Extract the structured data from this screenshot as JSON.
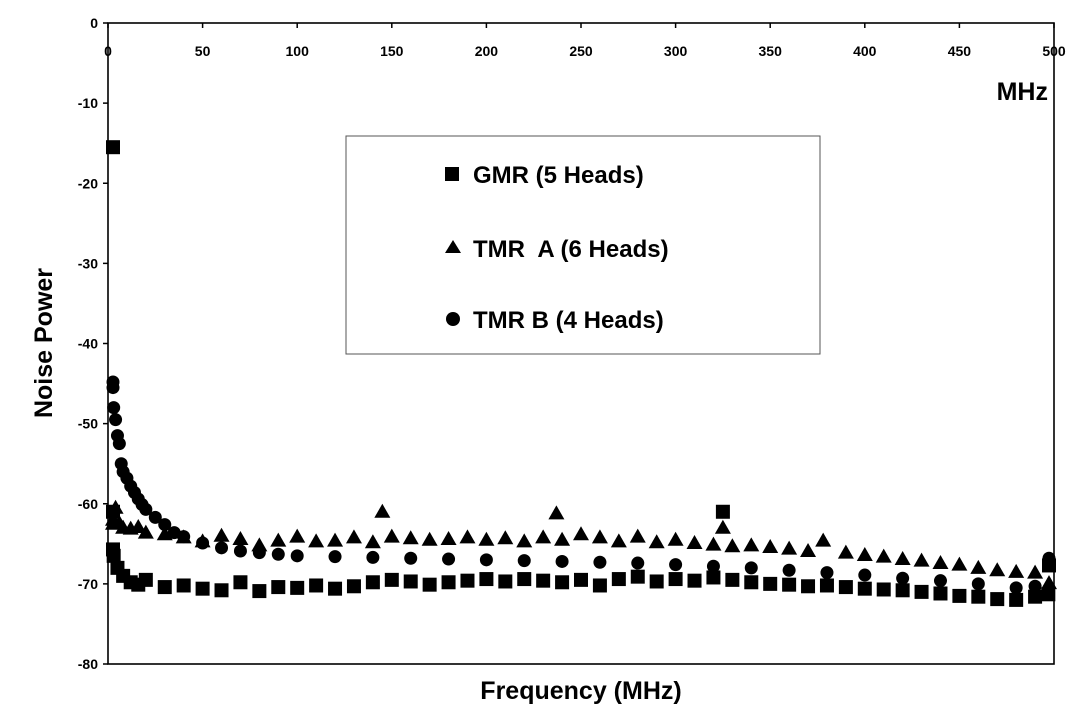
{
  "chart_data": {
    "type": "scatter",
    "title": "",
    "xlabel": "Frequency (MHz)",
    "ylabel": "Noise Power",
    "x_unit_label": "MHz",
    "xlim": [
      0,
      500
    ],
    "ylim": [
      -80,
      0
    ],
    "x_ticks": [
      0,
      50,
      100,
      150,
      200,
      250,
      300,
      350,
      400,
      450,
      500
    ],
    "y_ticks": [
      0,
      -10,
      -20,
      -30,
      -40,
      -50,
      -60,
      -70,
      -80
    ],
    "x_axis_position": "top",
    "grid": false,
    "legend_position": "center-top",
    "series": [
      {
        "name": "GMR (5 Heads)",
        "marker": "square",
        "color": "#000000",
        "x": [
          0,
          1,
          2,
          3,
          5,
          8,
          12,
          16,
          20,
          30,
          40,
          50,
          60,
          70,
          80,
          90,
          100,
          110,
          120,
          130,
          140,
          150,
          160,
          170,
          180,
          190,
          200,
          210,
          220,
          230,
          240,
          250,
          260,
          270,
          280,
          290,
          300,
          310,
          320,
          325,
          330,
          340,
          350,
          360,
          370,
          380,
          390,
          400,
          410,
          420,
          430,
          440,
          450,
          460,
          470,
          480,
          490,
          497,
          500
        ],
        "y": [
          -15.5,
          -61,
          -65.7,
          -66.5,
          -68,
          -69,
          -69.8,
          -70.1,
          -69.5,
          -70.4,
          -70.2,
          -70.6,
          -70.8,
          -69.8,
          -70.9,
          -70.4,
          -70.5,
          -70.2,
          -70.6,
          -70.3,
          -69.8,
          -69.5,
          -69.7,
          -70.1,
          -69.8,
          -69.6,
          -69.4,
          -69.7,
          -69.4,
          -69.6,
          -69.8,
          -69.5,
          -70.2,
          -69.4,
          -69.1,
          -69.7,
          -69.4,
          -69.6,
          -69.2,
          -61,
          -69.5,
          -69.8,
          -70.0,
          -70.1,
          -70.3,
          -70.2,
          -70.4,
          -70.6,
          -70.7,
          -70.8,
          -71.0,
          -71.2,
          -71.5,
          -71.6,
          -71.9,
          -72.0,
          -71.6,
          -71.3,
          -67.7
        ]
      },
      {
        "name": "TMR  A (6 Heads)",
        "marker": "triangle",
        "color": "#000000",
        "x": [
          0,
          2,
          4,
          6,
          8,
          12,
          16,
          20,
          30,
          40,
          50,
          60,
          70,
          80,
          90,
          100,
          110,
          120,
          130,
          140,
          145,
          150,
          160,
          170,
          180,
          190,
          200,
          210,
          220,
          230,
          237,
          240,
          250,
          260,
          270,
          280,
          290,
          300,
          310,
          320,
          325,
          330,
          340,
          350,
          360,
          370,
          378,
          390,
          400,
          410,
          420,
          430,
          440,
          450,
          460,
          470,
          480,
          490,
          500
        ],
        "y": [
          -62.5,
          -62.0,
          -60.5,
          -62.4,
          -63.0,
          -63.1,
          -62.9,
          -63.6,
          -63.8,
          -64.2,
          -64.7,
          -64.0,
          -64.4,
          -65.2,
          -64.6,
          -64.1,
          -64.7,
          -64.6,
          -64.2,
          -64.8,
          -61.0,
          -64.1,
          -64.3,
          -64.5,
          -64.4,
          -64.2,
          -64.5,
          -64.3,
          -64.7,
          -64.2,
          -61.2,
          -64.5,
          -63.8,
          -64.2,
          -64.7,
          -64.1,
          -64.8,
          -64.5,
          -64.9,
          -65.1,
          -63.0,
          -65.3,
          -65.2,
          -65.4,
          -65.6,
          -65.9,
          -64.6,
          -66.1,
          -66.4,
          -66.6,
          -66.9,
          -67.1,
          -67.4,
          -67.6,
          -68.0,
          -68.3,
          -68.5,
          -68.6,
          -69.9
        ]
      },
      {
        "name": "TMR B (4 Heads)",
        "marker": "circle",
        "color": "#000000",
        "x": [
          1,
          2,
          3,
          4,
          5,
          6,
          7,
          8,
          10,
          12,
          14,
          16,
          18,
          20,
          25,
          30,
          35,
          40,
          50,
          60,
          70,
          80,
          90,
          100,
          120,
          140,
          160,
          180,
          200,
          220,
          240,
          260,
          280,
          300,
          320,
          340,
          360,
          380,
          400,
          420,
          440,
          460,
          480,
          490,
          500
        ],
        "y": [
          -44.8,
          -45.5,
          -48.0,
          -49.5,
          -51.5,
          -52.5,
          -55.0,
          -56.0,
          -56.8,
          -57.8,
          -58.6,
          -59.4,
          -60.1,
          -60.7,
          -61.7,
          -62.6,
          -63.6,
          -64.1,
          -64.9,
          -65.5,
          -65.9,
          -66.1,
          -66.3,
          -66.5,
          -66.6,
          -66.7,
          -66.8,
          -66.9,
          -67.0,
          -67.1,
          -67.2,
          -67.3,
          -67.4,
          -67.6,
          -67.8,
          -68.0,
          -68.3,
          -68.6,
          -68.9,
          -69.3,
          -69.6,
          -70.0,
          -70.5,
          -70.3,
          -66.8
        ]
      }
    ]
  }
}
